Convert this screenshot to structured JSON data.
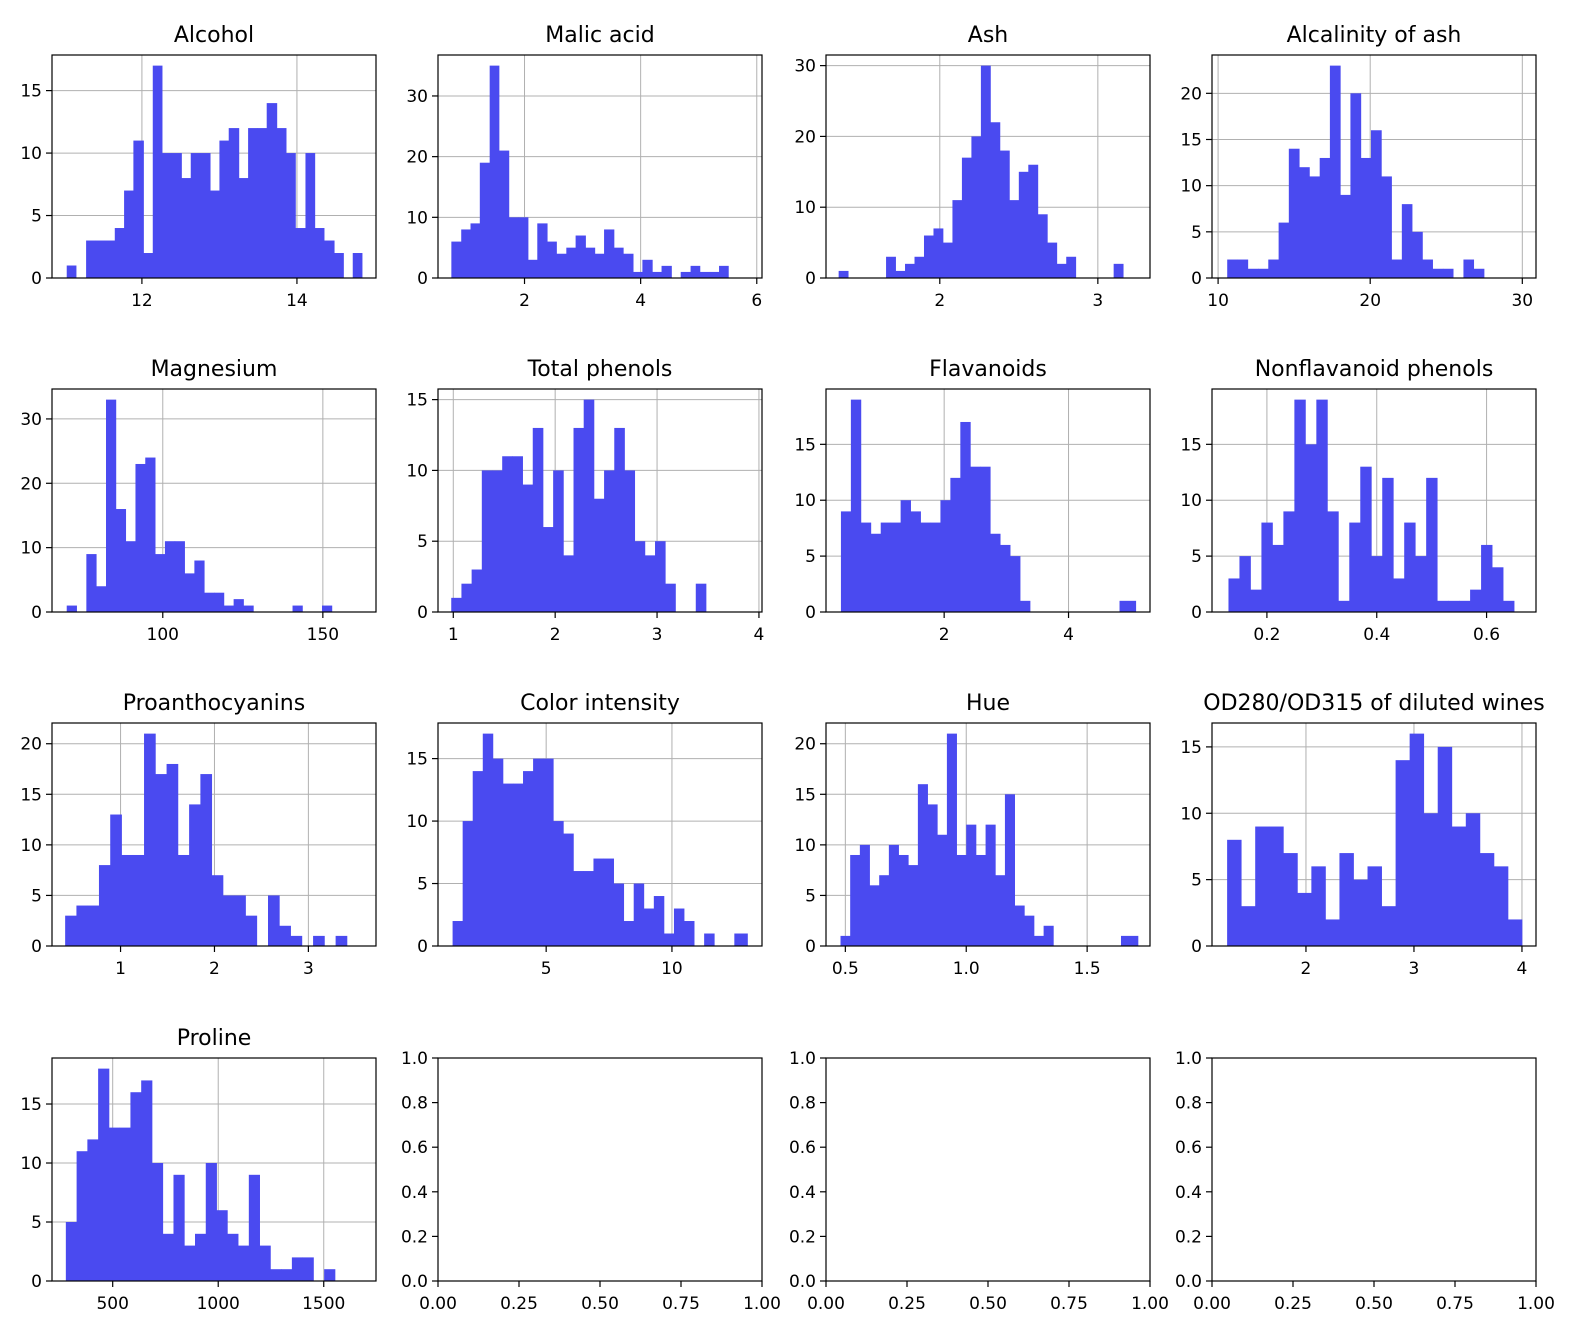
{
  "chart_data": [
    {
      "type": "bar",
      "title": "Alcohol",
      "xlim": [
        10.84,
        15.02
      ],
      "ylim": [
        0,
        17.85
      ],
      "xticks": [
        12,
        14
      ],
      "yticks": [
        0,
        5,
        10,
        15
      ],
      "bin_edges": [
        11.03,
        11.15,
        11.28,
        11.4,
        11.52,
        11.65,
        11.77,
        11.89,
        12.02,
        12.14,
        12.26,
        12.38,
        12.51,
        12.63,
        12.75,
        12.88,
        13.0,
        13.12,
        13.25,
        13.37,
        13.49,
        13.61,
        13.74,
        13.86,
        13.98,
        14.11,
        14.23,
        14.35,
        14.48,
        14.6,
        14.72,
        14.84
      ],
      "counts": [
        1,
        0,
        3,
        3,
        3,
        4,
        7,
        11,
        2,
        17,
        10,
        10,
        8,
        10,
        10,
        7,
        11,
        12,
        8,
        12,
        12,
        14,
        12,
        10,
        4,
        10,
        4,
        3,
        2,
        0,
        2
      ]
    },
    {
      "type": "bar",
      "title": "Malic acid",
      "xlim": [
        0.51,
        6.09
      ],
      "ylim": [
        0,
        36.75
      ],
      "xticks": [
        2,
        4,
        6
      ],
      "yticks": [
        0,
        10,
        20,
        30
      ],
      "bin_edges": [
        0.74,
        0.91,
        1.07,
        1.23,
        1.4,
        1.56,
        1.73,
        1.89,
        2.06,
        2.22,
        2.39,
        2.55,
        2.72,
        2.88,
        3.05,
        3.21,
        3.37,
        3.54,
        3.7,
        3.87,
        4.03,
        4.2,
        4.36,
        4.53,
        4.69,
        4.86,
        5.02,
        5.19,
        5.35,
        5.51,
        5.68,
        5.84
      ],
      "counts": [
        6,
        8,
        9,
        19,
        35,
        21,
        10,
        10,
        3,
        9,
        6,
        4,
        5,
        7,
        5,
        4,
        8,
        5,
        4,
        1,
        3,
        1,
        2,
        0,
        1,
        2,
        1,
        1,
        2,
        0,
        0
      ]
    },
    {
      "type": "bar",
      "title": "Ash",
      "xlim": [
        1.28,
        3.33
      ],
      "ylim": [
        0,
        31.5
      ],
      "xticks": [
        2,
        3
      ],
      "yticks": [
        0,
        10,
        20,
        30
      ],
      "bin_edges": [
        1.36,
        1.42,
        1.48,
        1.54,
        1.6,
        1.66,
        1.72,
        1.78,
        1.84,
        1.9,
        1.96,
        2.02,
        2.08,
        2.14,
        2.2,
        2.26,
        2.32,
        2.38,
        2.44,
        2.5,
        2.56,
        2.62,
        2.68,
        2.74,
        2.8,
        2.86,
        2.92,
        2.98,
        3.04,
        3.1,
        3.16,
        3.23
      ],
      "counts": [
        1,
        0,
        0,
        0,
        0,
        3,
        1,
        2,
        3,
        6,
        7,
        5,
        11,
        17,
        20,
        30,
        22,
        18,
        11,
        15,
        16,
        9,
        5,
        2,
        3,
        0,
        0,
        0,
        0,
        2,
        0
      ]
    },
    {
      "type": "bar",
      "title": "Alcalinity of ash",
      "xlim": [
        9.6,
        30.9
      ],
      "ylim": [
        0,
        24.15
      ],
      "xticks": [
        10,
        20,
        30
      ],
      "yticks": [
        0,
        5,
        10,
        15,
        20
      ],
      "bin_edges": [
        10.6,
        11.28,
        11.95,
        12.63,
        13.3,
        13.98,
        14.65,
        15.33,
        16.0,
        16.68,
        17.35,
        18.03,
        18.7,
        19.38,
        20.05,
        20.73,
        21.4,
        22.08,
        22.75,
        23.43,
        24.1,
        24.78,
        25.45,
        26.13,
        26.8,
        27.48,
        28.15,
        28.83,
        29.5,
        30.0
      ],
      "counts": [
        2,
        2,
        1,
        1,
        2,
        6,
        14,
        12,
        11,
        13,
        23,
        9,
        20,
        13,
        16,
        11,
        2,
        8,
        5,
        2,
        1,
        1,
        0,
        2,
        1,
        0,
        0,
        0,
        0
      ]
    },
    {
      "type": "bar",
      "title": "Magnesium",
      "xlim": [
        65.4,
        166.6
      ],
      "ylim": [
        0,
        34.65
      ],
      "xticks": [
        100,
        150
      ],
      "yticks": [
        0,
        10,
        20,
        30
      ],
      "bin_edges": [
        70,
        73.07,
        76.13,
        79.2,
        82.27,
        85.33,
        88.4,
        91.47,
        94.53,
        97.6,
        100.67,
        103.73,
        106.8,
        109.87,
        112.93,
        116.0,
        119.07,
        122.13,
        125.2,
        128.27,
        131.33,
        134.4,
        137.47,
        140.53,
        143.6,
        146.67,
        149.73,
        152.8,
        155.87,
        158.93,
        162.0
      ],
      "counts": [
        1,
        0,
        9,
        4,
        33,
        16,
        11,
        23,
        24,
        9,
        11,
        11,
        6,
        8,
        3,
        3,
        1,
        2,
        1,
        0,
        0,
        0,
        0,
        1,
        0,
        0,
        1,
        0,
        0,
        0
      ]
    },
    {
      "type": "bar",
      "title": "Total phenols",
      "xlim": [
        0.85,
        4.03
      ],
      "ylim": [
        0,
        15.75
      ],
      "xticks": [
        1,
        2,
        3,
        4
      ],
      "yticks": [
        0,
        5,
        10,
        15
      ],
      "bin_edges": [
        0.98,
        1.08,
        1.18,
        1.28,
        1.38,
        1.48,
        1.58,
        1.68,
        1.78,
        1.88,
        1.98,
        2.08,
        2.18,
        2.28,
        2.38,
        2.48,
        2.58,
        2.68,
        2.78,
        2.88,
        2.98,
        3.08,
        3.18,
        3.28,
        3.38,
        3.48,
        3.58,
        3.68,
        3.78,
        3.88
      ],
      "counts": [
        1,
        2,
        3,
        10,
        10,
        11,
        11,
        9,
        13,
        6,
        10,
        4,
        13,
        15,
        8,
        10,
        13,
        10,
        5,
        4,
        5,
        2,
        0,
        0,
        2,
        0,
        0,
        0,
        0
      ]
    },
    {
      "type": "bar",
      "title": "Flavanoids",
      "xlim": [
        0.1,
        5.31
      ],
      "ylim": [
        0,
        19.95
      ],
      "xticks": [
        2,
        4
      ],
      "yticks": [
        0,
        5,
        10,
        15
      ],
      "bin_edges": [
        0.34,
        0.5,
        0.66,
        0.82,
        0.98,
        1.14,
        1.3,
        1.46,
        1.62,
        1.78,
        1.94,
        2.1,
        2.26,
        2.42,
        2.58,
        2.74,
        2.9,
        3.06,
        3.22,
        3.38,
        3.54,
        3.7,
        3.86,
        4.02,
        4.18,
        4.34,
        4.5,
        4.66,
        4.82,
        5.08
      ],
      "counts": [
        9,
        19,
        8,
        7,
        8,
        8,
        10,
        9,
        8,
        8,
        10,
        12,
        17,
        13,
        13,
        7,
        6,
        5,
        1,
        0,
        0,
        0,
        0,
        0,
        0,
        0,
        0,
        0,
        1
      ]
    },
    {
      "type": "bar",
      "title": "Nonflavanoid phenols",
      "xlim": [
        0.1,
        0.69
      ],
      "ylim": [
        0,
        19.95
      ],
      "xticks": [
        0.2,
        0.4,
        0.6
      ],
      "yticks": [
        0,
        5,
        10,
        15
      ],
      "bin_edges": [
        0.13,
        0.15,
        0.17,
        0.19,
        0.21,
        0.23,
        0.25,
        0.27,
        0.29,
        0.31,
        0.33,
        0.35,
        0.37,
        0.39,
        0.41,
        0.43,
        0.45,
        0.47,
        0.49,
        0.51,
        0.53,
        0.55,
        0.57,
        0.59,
        0.61,
        0.63,
        0.65,
        0.66
      ],
      "counts": [
        3,
        5,
        2,
        8,
        6,
        9,
        19,
        15,
        19,
        9,
        1,
        8,
        13,
        5,
        12,
        3,
        8,
        5,
        12,
        1,
        1,
        1,
        2,
        6,
        4,
        1,
        0
      ]
    },
    {
      "type": "bar",
      "title": "Proanthocyanins",
      "xlim": [
        0.27,
        3.72
      ],
      "ylim": [
        0,
        22.05
      ],
      "xticks": [
        1,
        2,
        3
      ],
      "yticks": [
        0,
        5,
        10,
        15,
        20
      ],
      "bin_edges": [
        0.41,
        0.53,
        0.65,
        0.77,
        0.89,
        1.01,
        1.13,
        1.25,
        1.37,
        1.49,
        1.61,
        1.73,
        1.85,
        1.97,
        2.09,
        2.21,
        2.33,
        2.45,
        2.57,
        2.69,
        2.81,
        2.93,
        3.05,
        3.17,
        3.29,
        3.41,
        3.58
      ],
      "counts": [
        3,
        4,
        4,
        8,
        13,
        9,
        9,
        21,
        17,
        18,
        9,
        14,
        17,
        7,
        5,
        5,
        3,
        0,
        5,
        2,
        1,
        0,
        1,
        0,
        1,
        0
      ]
    },
    {
      "type": "bar",
      "title": "Color intensity",
      "xlim": [
        0.7,
        13.58
      ],
      "ylim": [
        0,
        17.85
      ],
      "xticks": [
        5,
        10
      ],
      "yticks": [
        0,
        5,
        10,
        15
      ],
      "bin_edges": [
        1.28,
        1.68,
        2.08,
        2.48,
        2.88,
        3.28,
        3.68,
        4.08,
        4.48,
        4.88,
        5.28,
        5.68,
        6.08,
        6.48,
        6.88,
        7.28,
        7.68,
        8.08,
        8.48,
        8.88,
        9.28,
        9.68,
        10.08,
        10.48,
        10.88,
        11.28,
        11.68,
        12.08,
        12.48,
        13.0
      ],
      "counts": [
        2,
        10,
        14,
        17,
        15,
        13,
        13,
        14,
        15,
        15,
        10,
        9,
        6,
        6,
        7,
        7,
        5,
        2,
        5,
        3,
        4,
        1,
        3,
        2,
        0,
        1,
        0,
        0,
        1
      ]
    },
    {
      "type": "bar",
      "title": "Hue",
      "xlim": [
        0.42,
        1.76
      ],
      "ylim": [
        0,
        22.05
      ],
      "xticks": [
        0.5,
        1.0,
        1.5
      ],
      "yticks": [
        0,
        5,
        10,
        15,
        20
      ],
      "bin_edges": [
        0.48,
        0.52,
        0.56,
        0.6,
        0.64,
        0.68,
        0.72,
        0.76,
        0.8,
        0.84,
        0.88,
        0.92,
        0.96,
        1.0,
        1.04,
        1.08,
        1.12,
        1.16,
        1.2,
        1.24,
        1.28,
        1.32,
        1.36,
        1.4,
        1.44,
        1.48,
        1.52,
        1.56,
        1.6,
        1.64,
        1.71
      ],
      "counts": [
        1,
        9,
        10,
        6,
        7,
        10,
        9,
        8,
        16,
        14,
        11,
        21,
        9,
        12,
        9,
        12,
        7,
        15,
        4,
        3,
        1,
        2,
        0,
        0,
        0,
        0,
        0,
        0,
        0,
        1
      ]
    },
    {
      "type": "bar",
      "title": "OD280/OD315 of diluted wines",
      "xlim": [
        1.13,
        4.13
      ],
      "ylim": [
        0,
        16.8
      ],
      "xticks": [
        2,
        3,
        4
      ],
      "yticks": [
        0,
        5,
        10,
        15
      ],
      "bin_edges": [
        1.27,
        1.4,
        1.53,
        1.66,
        1.79,
        1.92,
        2.05,
        2.18,
        2.31,
        2.44,
        2.57,
        2.7,
        2.83,
        2.96,
        3.09,
        3.22,
        3.35,
        3.48,
        3.61,
        3.74,
        3.87,
        4.0
      ],
      "counts": [
        8,
        3,
        9,
        9,
        7,
        4,
        6,
        2,
        7,
        5,
        6,
        3,
        14,
        16,
        10,
        15,
        9,
        10,
        7,
        6,
        2
      ]
    },
    {
      "type": "bar",
      "title": "Proline",
      "xlim": [
        212.4,
        1747.6
      ],
      "ylim": [
        0,
        18.9
      ],
      "xticks": [
        500,
        1000,
        1500
      ],
      "yticks": [
        0,
        5,
        10,
        15
      ],
      "bin_edges": [
        278,
        329,
        380,
        431,
        482,
        533,
        584,
        635,
        686,
        737,
        788,
        839,
        890,
        941,
        992,
        1043,
        1094,
        1145,
        1196,
        1247,
        1298,
        1349,
        1400,
        1451,
        1502,
        1553,
        1604,
        1680
      ],
      "counts": [
        5,
        11,
        12,
        18,
        13,
        13,
        16,
        17,
        10,
        4,
        9,
        3,
        4,
        10,
        6,
        4,
        3,
        9,
        3,
        1,
        1,
        2,
        2,
        0,
        1,
        0,
        0
      ]
    },
    {
      "type": "bar",
      "title": "",
      "xlim": [
        0,
        1
      ],
      "ylim": [
        0,
        1
      ],
      "xticks": [
        0.0,
        0.25,
        0.5,
        0.75,
        1.0
      ],
      "yticks": [
        0.0,
        0.2,
        0.4,
        0.6,
        0.8,
        1.0
      ],
      "bin_edges": [],
      "counts": []
    },
    {
      "type": "bar",
      "title": "",
      "xlim": [
        0,
        1
      ],
      "ylim": [
        0,
        1
      ],
      "xticks": [
        0.0,
        0.25,
        0.5,
        0.75,
        1.0
      ],
      "yticks": [
        0.0,
        0.2,
        0.4,
        0.6,
        0.8,
        1.0
      ],
      "bin_edges": [],
      "counts": []
    },
    {
      "type": "bar",
      "title": "",
      "xlim": [
        0,
        1
      ],
      "ylim": [
        0,
        1
      ],
      "xticks": [
        0.0,
        0.25,
        0.5,
        0.75,
        1.0
      ],
      "yticks": [
        0.0,
        0.2,
        0.4,
        0.6,
        0.8,
        1.0
      ],
      "bin_edges": [],
      "counts": []
    }
  ],
  "style": {
    "bar_color": "#4a4af0",
    "grid": true,
    "grid_color": "#b0b0b0"
  }
}
